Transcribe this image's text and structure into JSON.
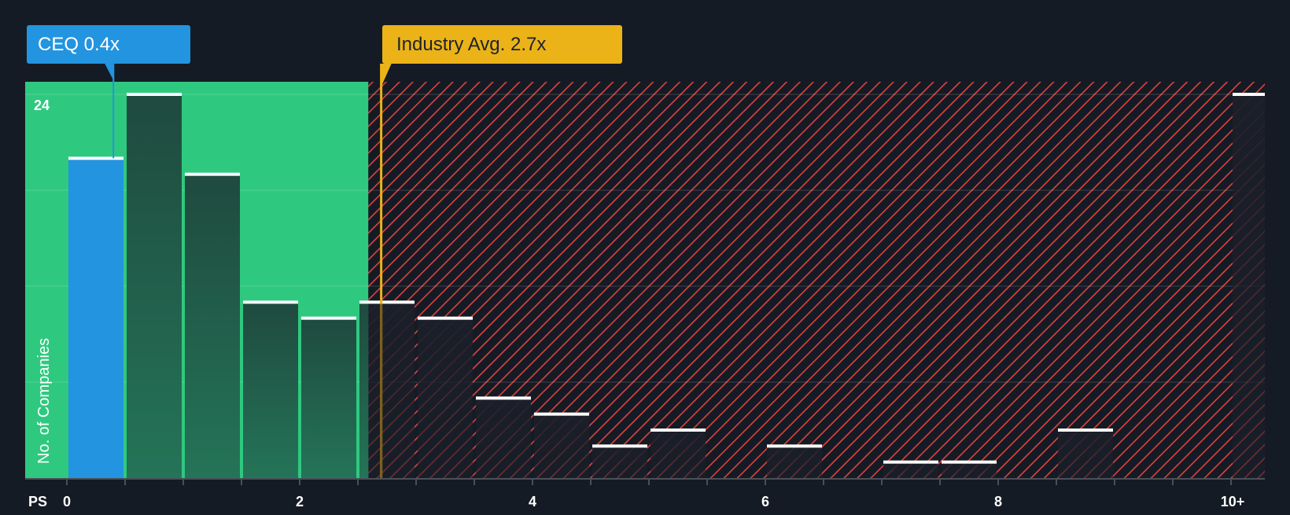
{
  "callouts": {
    "company": {
      "label": "CEQ 0.4x",
      "value": 0.4,
      "color": "#2394e0"
    },
    "industry": {
      "label": "Industry Avg. 2.7x",
      "value": 2.7,
      "color": "#ebb318"
    }
  },
  "axes": {
    "x_title": "PS",
    "x_tick_labels": [
      {
        "label": "0",
        "value": 0
      },
      {
        "label": "2",
        "value": 2
      },
      {
        "label": "4",
        "value": 4
      },
      {
        "label": "6",
        "value": 6
      },
      {
        "label": "8",
        "value": 8
      },
      {
        "label": "10+",
        "value": 10
      }
    ],
    "y_title": "No. of Companies",
    "y_max_label": "24"
  },
  "colors": {
    "background": "#151b24",
    "fair_region": "#2ec97f",
    "over_region_hatch": "#e0413f",
    "company_bar": "#2394e0",
    "industry_line": "#ebb318",
    "bar_top": "#ffffff"
  },
  "chart_data": {
    "type": "bar",
    "title": "",
    "xlabel": "PS",
    "ylabel": "No. of Companies",
    "bin_width": 0.5,
    "categories": [
      "0-0.5",
      "0.5-1",
      "1-1.5",
      "1.5-2",
      "2-2.5",
      "2.5-3",
      "3-3.5",
      "3.5-4",
      "4-4.5",
      "4.5-5",
      "5-5.5",
      "5.5-6",
      "6-6.5",
      "6.5-7",
      "7-7.5",
      "7.5-8",
      "8-8.5",
      "8.5-9",
      "9-9.5",
      "9.5-10",
      "10+"
    ],
    "bin_starts": [
      0,
      0.5,
      1,
      1.5,
      2,
      2.5,
      3,
      3.5,
      4,
      4.5,
      5,
      5.5,
      6,
      6.5,
      7,
      7.5,
      8,
      8.5,
      9,
      9.5,
      10
    ],
    "values": [
      20,
      24,
      19,
      11,
      10,
      11,
      10,
      5,
      4,
      2,
      3,
      0,
      2,
      0,
      1,
      1,
      0,
      3,
      0,
      0,
      24
    ],
    "highlight_bin": 0,
    "company": {
      "name": "CEQ",
      "value": 0.4
    },
    "industry_avg": 2.7,
    "fair_region_end": 2.59,
    "ylim": [
      0,
      24
    ],
    "y_gridlines": [
      6,
      12,
      18,
      24
    ],
    "x_ticks": [
      0,
      0.5,
      1,
      1.5,
      2,
      2.5,
      3,
      3.5,
      4,
      4.5,
      5,
      5.5,
      6,
      6.5,
      7,
      7.5,
      8,
      8.5,
      9,
      9.5,
      10
    ],
    "grid": true,
    "legend": "none"
  }
}
